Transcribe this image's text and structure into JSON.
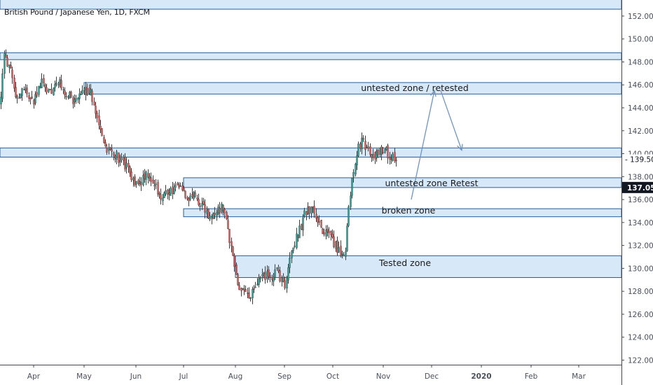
{
  "header": {
    "symbol_title": "British Pound / Japanese Yen, 1D, FXCM"
  },
  "colors": {
    "background": "#ffffff",
    "up_candle": "#26a69a",
    "down_candle": "#ef5350",
    "candle_body": "#3b3b3b",
    "zone_fill": "#d7e8f8",
    "zone_border": "#2a5e94",
    "arrow": "#6f95c4",
    "axis_text": "#4a4f5a",
    "axis_line": "#434651",
    "price_tag_bg": "#131722",
    "price_tag_text": "#ffffff"
  },
  "chart_data": {
    "type": "candlestick",
    "title": "British Pound / Japanese Yen, 1D, FXCM",
    "ylim": [
      121.6,
      153.4
    ],
    "y_ticks": [
      "122.000",
      "124.000",
      "126.000",
      "128.000",
      "130.000",
      "132.000",
      "134.000",
      "136.000",
      "138.000",
      "140.000",
      "142.000",
      "144.000",
      "146.000",
      "148.000",
      "150.000",
      "152.000"
    ],
    "x_ticks": [
      "Apr",
      "May",
      "Jun",
      "Jul",
      "Aug",
      "Sep",
      "Oct",
      "Nov",
      "Dec",
      "2020",
      "Feb",
      "Mar"
    ],
    "price_path": [
      [
        0,
        144.5
      ],
      [
        6,
        148.6
      ],
      [
        14,
        147.4
      ],
      [
        22,
        144.6
      ],
      [
        34,
        145.8
      ],
      [
        46,
        144.4
      ],
      [
        58,
        146.2
      ],
      [
        70,
        145.4
      ],
      [
        82,
        146.3
      ],
      [
        92,
        145.5
      ],
      [
        104,
        144.5
      ],
      [
        116,
        145.0
      ],
      [
        126,
        145.9
      ],
      [
        132,
        144.6
      ],
      [
        140,
        142.7
      ],
      [
        150,
        140.6
      ],
      [
        160,
        140.1
      ],
      [
        170,
        139.6
      ],
      [
        180,
        138.8
      ],
      [
        190,
        137.4
      ],
      [
        200,
        137.6
      ],
      [
        210,
        138.2
      ],
      [
        220,
        137.3
      ],
      [
        230,
        136.3
      ],
      [
        240,
        136.7
      ],
      [
        252,
        137.0
      ],
      [
        260,
        137.2
      ],
      [
        266,
        136.1
      ],
      [
        276,
        136.2
      ],
      [
        286,
        135.8
      ],
      [
        296,
        134.6
      ],
      [
        306,
        134.5
      ],
      [
        316,
        135.4
      ],
      [
        322,
        134.1
      ],
      [
        328,
        132.3
      ],
      [
        334,
        130.2
      ],
      [
        340,
        128.4
      ],
      [
        348,
        128.0
      ],
      [
        356,
        127.3
      ],
      [
        364,
        128.3
      ],
      [
        372,
        129.0
      ],
      [
        380,
        129.5
      ],
      [
        388,
        129.2
      ],
      [
        396,
        129.7
      ],
      [
        406,
        128.3
      ],
      [
        414,
        131.1
      ],
      [
        422,
        132.6
      ],
      [
        430,
        133.9
      ],
      [
        438,
        135.3
      ],
      [
        446,
        135.0
      ],
      [
        454,
        134.0
      ],
      [
        462,
        133.2
      ],
      [
        470,
        132.6
      ],
      [
        478,
        132.0
      ],
      [
        486,
        131.3
      ],
      [
        492,
        131.4
      ],
      [
        498,
        135.9
      ],
      [
        504,
        138.4
      ],
      [
        510,
        140.3
      ],
      [
        516,
        141.0
      ],
      [
        524,
        140.4
      ],
      [
        532,
        139.7
      ],
      [
        540,
        140.1
      ],
      [
        548,
        140.3
      ],
      [
        556,
        139.9
      ],
      [
        566,
        139.5
      ]
    ],
    "last_price": "139.509",
    "last_price_value": 139.509,
    "zone_price_label": "137.051",
    "zone_price_value": 137.051,
    "zones": [
      {
        "id": "top-zone",
        "from_date": "Mar",
        "to_date": "end",
        "price_low": 152.6,
        "price_high": 154.0,
        "label": ""
      },
      {
        "id": "zone-148",
        "from_date": "Mar",
        "to_date": "end",
        "price_low": 148.2,
        "price_high": 148.8,
        "label": ""
      },
      {
        "id": "zone-146",
        "from_date": "May",
        "to_date": "end",
        "price_low": 145.2,
        "price_high": 146.2,
        "label": "untested zone / retested"
      },
      {
        "id": "zone-140",
        "from_date": "Mar",
        "to_date": "end",
        "price_low": 139.7,
        "price_high": 140.5,
        "label": ""
      },
      {
        "id": "zone-137",
        "from_date": "Jul",
        "to_date": "end",
        "price_low": 137.05,
        "price_high": 137.9,
        "label": "untested zone Retest"
      },
      {
        "id": "zone-135",
        "from_date": "Jul",
        "to_date": "end",
        "price_low": 134.5,
        "price_high": 135.2,
        "label": "broken zone"
      },
      {
        "id": "zone-130",
        "from_date": "Aug",
        "to_date": "end",
        "price_low": 129.2,
        "price_high": 131.1,
        "label": "Tested zone"
      }
    ],
    "projection_arrow": [
      [
        "Nov",
        136.0
      ],
      [
        "Dec",
        145.5
      ],
      [
        "Dec",
        140.3
      ]
    ]
  }
}
